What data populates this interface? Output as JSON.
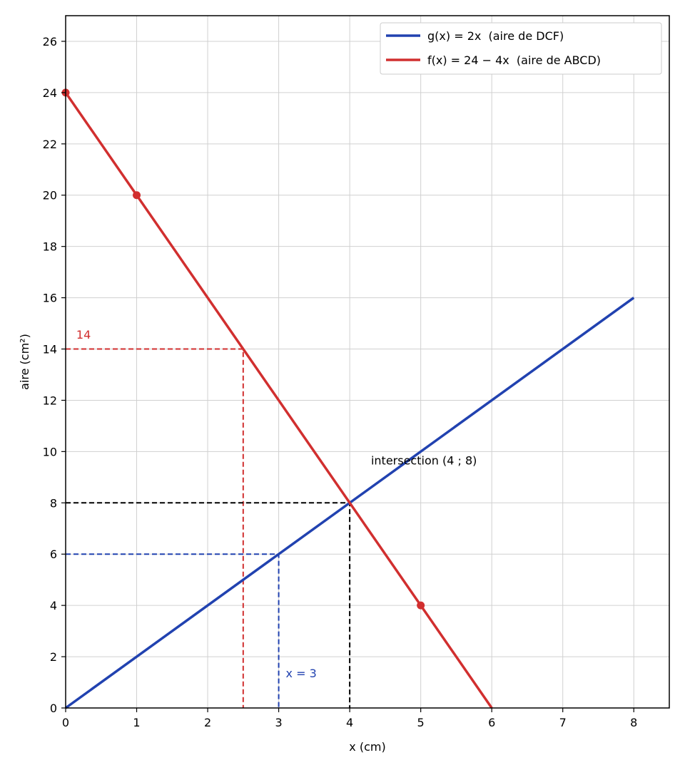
{
  "chart_data": {
    "type": "line",
    "xlabel": "x (cm)",
    "ylabel": "aire (cm²)",
    "xlim": [
      0,
      8.5
    ],
    "ylim": [
      0,
      27
    ],
    "xticks": [
      0,
      1,
      2,
      3,
      4,
      5,
      6,
      7,
      8
    ],
    "yticks": [
      0,
      2,
      4,
      6,
      8,
      10,
      12,
      14,
      16,
      18,
      20,
      22,
      24,
      26
    ],
    "grid": true,
    "legend_position": "top-right",
    "series": [
      {
        "name": "g(x) = 2x  (aire de DCF)",
        "color": "#2142b0",
        "x": [
          0,
          8
        ],
        "y": [
          0,
          16
        ]
      },
      {
        "name": "f(x) = 24 − 4x  (aire de ABCD)",
        "color": "#d12f2f",
        "x": [
          0,
          6
        ],
        "y": [
          24,
          0
        ],
        "markers": [
          [
            0,
            24
          ],
          [
            1,
            20
          ],
          [
            5,
            4
          ]
        ]
      }
    ],
    "guides": [
      {
        "color": "#d12f2f",
        "points": [
          [
            0,
            14
          ],
          [
            2.5,
            14
          ],
          [
            2.5,
            0
          ]
        ]
      },
      {
        "color": "#2142b0",
        "points": [
          [
            0,
            6
          ],
          [
            3,
            6
          ],
          [
            3,
            0
          ]
        ]
      },
      {
        "color": "#000000",
        "points": [
          [
            0,
            8
          ],
          [
            4,
            8
          ],
          [
            4,
            0
          ]
        ]
      }
    ],
    "annotations": [
      {
        "text": "14",
        "x": 0.15,
        "y": 14.4,
        "color": "#d12f2f"
      },
      {
        "text": "x = 3",
        "x": 3.1,
        "y": 1.2,
        "color": "#2142b0"
      },
      {
        "text": "intersection (4 ; 8)",
        "x": 4.3,
        "y": 9.5,
        "color": "#000000"
      }
    ]
  }
}
